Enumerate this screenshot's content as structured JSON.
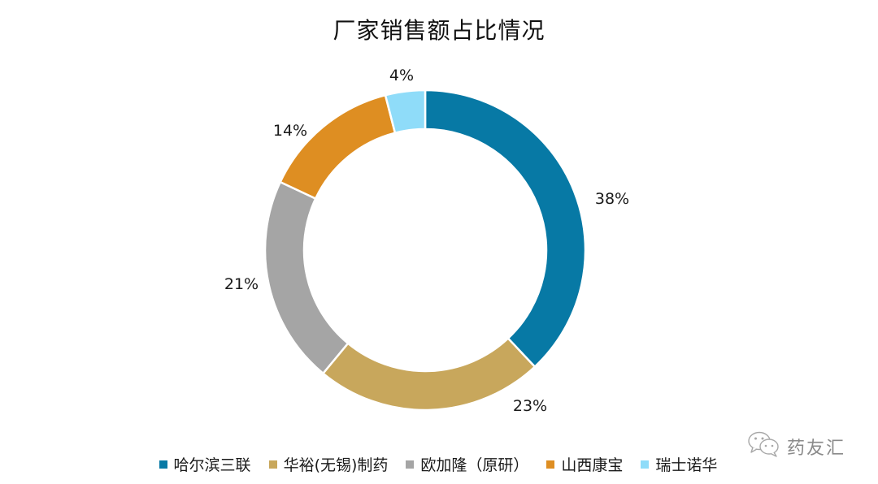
{
  "chart_data": {
    "type": "pie",
    "variant": "donut",
    "title": "厂家销售额占比情况",
    "categories": [
      "哈尔滨三联",
      "华裕(无锡)制药",
      "欧加隆（原研）",
      "山西康宝",
      "瑞士诺华"
    ],
    "values": [
      38,
      23,
      21,
      14,
      4
    ],
    "unit": "%",
    "data_labels": [
      "38%",
      "23%",
      "21%",
      "14%",
      "4%"
    ],
    "colors": [
      "#0779a5",
      "#c8a75c",
      "#a5a5a5",
      "#de8e22",
      "#8fdcf9"
    ],
    "start_angle_deg": 0,
    "direction": "clockwise",
    "legend_position": "bottom"
  },
  "title": "厂家销售额占比情况",
  "legend": {
    "items": [
      {
        "label": "哈尔滨三联",
        "color": "#0779a5"
      },
      {
        "label": "华裕(无锡)制药",
        "color": "#c8a75c"
      },
      {
        "label": "欧加隆（原研）",
        "color": "#a5a5a5"
      },
      {
        "label": "山西康宝",
        "color": "#de8e22"
      },
      {
        "label": "瑞士诺华",
        "color": "#8fdcf9"
      }
    ]
  },
  "labels": {
    "l0": "38%",
    "l1": "23%",
    "l2": "21%",
    "l3": "14%",
    "l4": "4%"
  },
  "watermark": {
    "icon": "wechat-icon",
    "text": "药友汇"
  }
}
